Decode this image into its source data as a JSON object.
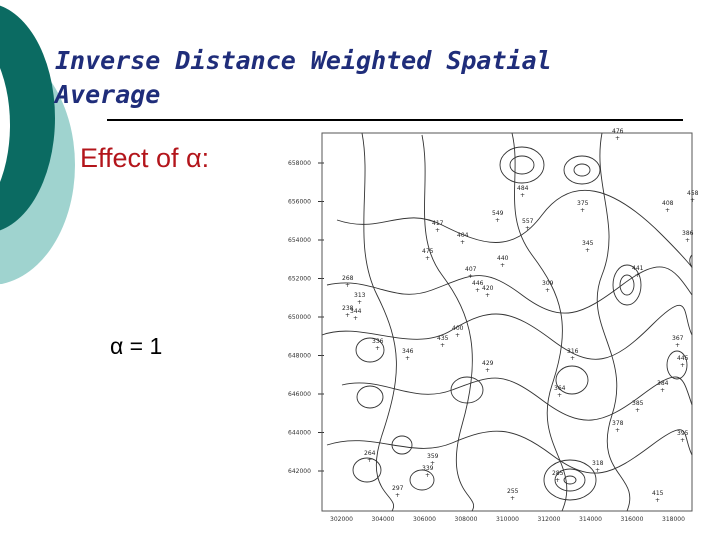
{
  "slide": {
    "title_line1": "Inverse Distance Weighted Spatial",
    "title_line2": "Average",
    "effect_label": "Effect of α:",
    "alpha_setting": "α = 1"
  },
  "colors": {
    "title": "#1f2d7a",
    "effect": "#b3151b",
    "deco_dark": "#0b6b62",
    "deco_light": "#9fd3cf"
  },
  "map": {
    "y_ticks": [
      "658000",
      "656000",
      "654000",
      "652000",
      "650000",
      "648000",
      "646000",
      "644000",
      "642000"
    ],
    "x_ticks": [
      "302000",
      "304000",
      "306000",
      "308000",
      "310000",
      "312000",
      "314000",
      "316000",
      "318000"
    ],
    "station_values": [
      "476",
      "417",
      "475",
      "404",
      "440",
      "407",
      "446",
      "420",
      "268",
      "313",
      "400",
      "429",
      "316",
      "378",
      "364",
      "395",
      "484",
      "549",
      "557",
      "344",
      "346",
      "336",
      "435",
      "375",
      "441",
      "309",
      "345",
      "384",
      "359",
      "264",
      "318",
      "255",
      "238",
      "297",
      "285",
      "339",
      "367",
      "385",
      "386",
      "408",
      "445",
      "458",
      "415"
    ]
  }
}
